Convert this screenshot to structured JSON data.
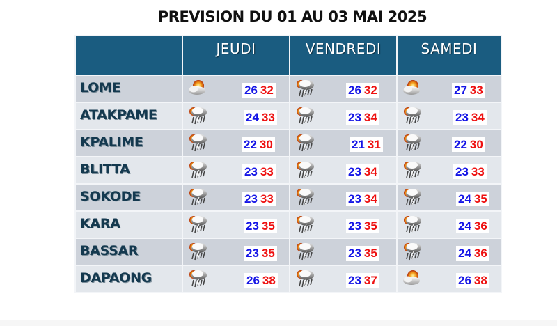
{
  "title": "PREVISION DU 01 AU 03 MAI 2025",
  "colors": {
    "header_bg": "#1a5c80",
    "row_dark": "#cdd2da",
    "row_light": "#e3e7ec",
    "city_text": "#14394f",
    "min_temp": "#1414e6",
    "max_temp": "#ee1111"
  },
  "columns": [
    "",
    "JEUDI",
    "VENDREDI",
    "SAMEDI"
  ],
  "rows": [
    {
      "city": "LOME",
      "days": [
        {
          "icon": "partly-cloudy-icon",
          "min": "26",
          "max": "32"
        },
        {
          "icon": "thunderstorm-icon",
          "min": "26",
          "max": "32"
        },
        {
          "icon": "partly-cloudy-icon",
          "min": "27",
          "max": "33"
        }
      ]
    },
    {
      "city": "ATAKPAME",
      "days": [
        {
          "icon": "thunderstorm-icon",
          "min": "24",
          "max": "33"
        },
        {
          "icon": "thunderstorm-icon",
          "min": "23",
          "max": "34"
        },
        {
          "icon": "thunderstorm-icon",
          "min": "23",
          "max": "34"
        }
      ]
    },
    {
      "city": "KPALIME",
      "days": [
        {
          "icon": "thunderstorm-icon",
          "min": "22",
          "max": "30"
        },
        {
          "icon": "thunderstorm-icon",
          "min": "21",
          "max": "31"
        },
        {
          "icon": "thunderstorm-icon",
          "min": "22",
          "max": "30"
        }
      ]
    },
    {
      "city": "BLITTA",
      "days": [
        {
          "icon": "thunderstorm-icon",
          "min": "23",
          "max": "33"
        },
        {
          "icon": "thunderstorm-icon",
          "min": "23",
          "max": "34"
        },
        {
          "icon": "thunderstorm-icon",
          "min": "23",
          "max": "33"
        }
      ]
    },
    {
      "city": "SOKODE",
      "days": [
        {
          "icon": "thunderstorm-icon",
          "min": "23",
          "max": "33"
        },
        {
          "icon": "thunderstorm-icon",
          "min": "23",
          "max": "34"
        },
        {
          "icon": "thunderstorm-icon",
          "min": "24",
          "max": "35"
        }
      ]
    },
    {
      "city": "KARA",
      "days": [
        {
          "icon": "thunderstorm-icon",
          "min": "23",
          "max": "35"
        },
        {
          "icon": "thunderstorm-icon",
          "min": "23",
          "max": "35"
        },
        {
          "icon": "thunderstorm-icon",
          "min": "24",
          "max": "36"
        }
      ]
    },
    {
      "city": "BASSAR",
      "days": [
        {
          "icon": "thunderstorm-icon",
          "min": "23",
          "max": "35"
        },
        {
          "icon": "thunderstorm-icon",
          "min": "23",
          "max": "35"
        },
        {
          "icon": "thunderstorm-icon",
          "min": "24",
          "max": "36"
        }
      ]
    },
    {
      "city": "DAPAONG",
      "days": [
        {
          "icon": "thunderstorm-icon",
          "min": "26",
          "max": "38"
        },
        {
          "icon": "thunderstorm-icon",
          "min": "23",
          "max": "37"
        },
        {
          "icon": "partly-cloudy-icon",
          "min": "26",
          "max": "38"
        }
      ]
    }
  ]
}
